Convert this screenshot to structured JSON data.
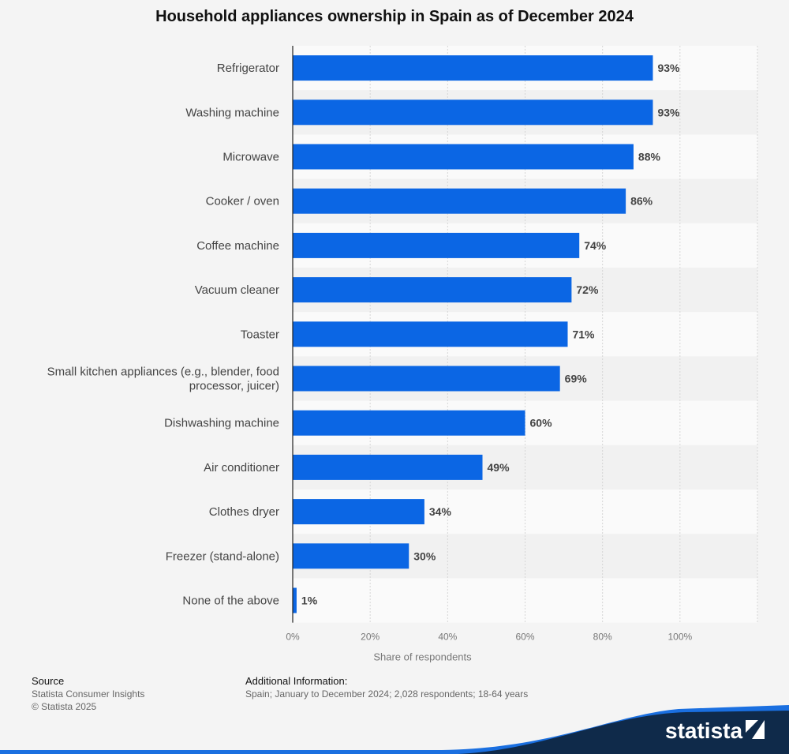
{
  "title": "Household appliances ownership in Spain as of December 2024",
  "chart_data": {
    "type": "bar",
    "orientation": "horizontal",
    "title": "Household appliances ownership in Spain as of December 2024",
    "categories": [
      "Refrigerator",
      "Washing machine",
      "Microwave",
      "Cooker / oven",
      "Coffee machine",
      "Vacuum cleaner",
      "Toaster",
      "Small kitchen appliances (e.g., blender, food processor, juicer)",
      "Dishwashing machine",
      "Air conditioner",
      "Clothes dryer",
      "Freezer (stand-alone)",
      "None of the above"
    ],
    "category_lines": [
      [
        "Refrigerator"
      ],
      [
        "Washing machine"
      ],
      [
        "Microwave"
      ],
      [
        "Cooker / oven"
      ],
      [
        "Coffee machine"
      ],
      [
        "Vacuum cleaner"
      ],
      [
        "Toaster"
      ],
      [
        "Small kitchen appliances (e.g., blender, food",
        "processor, juicer)"
      ],
      [
        "Dishwashing machine"
      ],
      [
        "Air conditioner"
      ],
      [
        "Clothes dryer"
      ],
      [
        "Freezer (stand-alone)"
      ],
      [
        "None of the above"
      ]
    ],
    "values": [
      93,
      93,
      88,
      86,
      74,
      72,
      71,
      69,
      60,
      49,
      34,
      30,
      1
    ],
    "value_labels": [
      "93%",
      "93%",
      "88%",
      "86%",
      "74%",
      "72%",
      "71%",
      "69%",
      "60%",
      "49%",
      "34%",
      "30%",
      "1%"
    ],
    "xlabel": "Share of respondents",
    "xlim": [
      0,
      120
    ],
    "x_ticks": [
      0,
      20,
      40,
      60,
      80,
      100,
      120
    ],
    "x_tick_labels": [
      "0%",
      "20%",
      "40%",
      "60%",
      "80%",
      "100%",
      ""
    ],
    "grid": true,
    "colors": {
      "bar": "#0b66e4",
      "band_light": "#fafafa",
      "band_dark": "#f1f1f1"
    }
  },
  "footer": {
    "source_heading": "Source",
    "source_lines": [
      "Statista Consumer Insights",
      "© Statista 2025"
    ],
    "info_heading": "Additional Information:",
    "info_text": "Spain; January to December 2024; 2,028 respondents; 18-64 years"
  },
  "brand": {
    "name": "statista",
    "colors": {
      "navy": "#0f2a4a",
      "blue": "#1a6fe0"
    }
  }
}
